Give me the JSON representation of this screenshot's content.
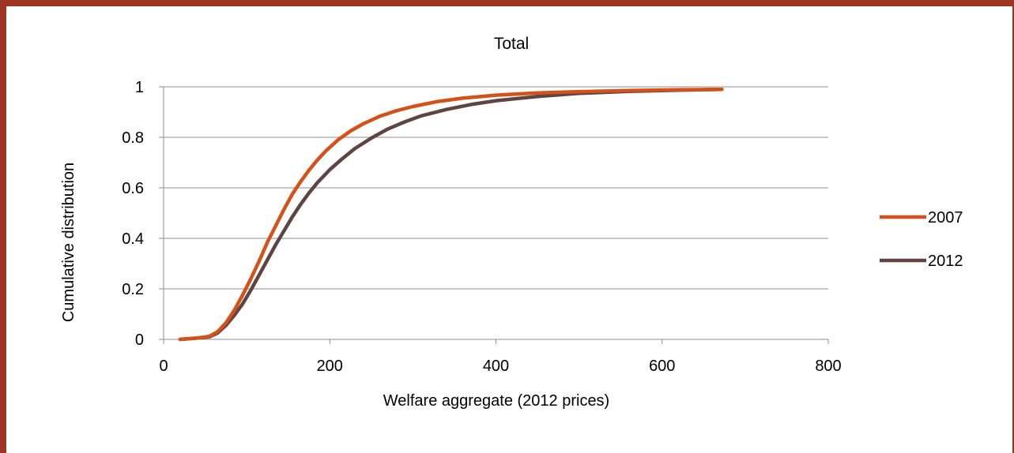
{
  "chart_data": {
    "type": "line",
    "title": "Total",
    "xlabel": "Welfare aggregate (2012 prices)",
    "ylabel": "Cumulative distribution",
    "xlim": [
      0,
      800
    ],
    "ylim": [
      0,
      1
    ],
    "x_ticks": [
      0,
      200,
      400,
      600,
      800
    ],
    "y_ticks": [
      0,
      0.2,
      0.4,
      0.6,
      0.8,
      1
    ],
    "x_tick_labels": [
      "0",
      "200",
      "400",
      "600",
      "800"
    ],
    "y_tick_labels": [
      "0",
      "0.2",
      "0.4",
      "0.6",
      "0.8",
      "1"
    ],
    "grid": "horizontal",
    "legend_position": "right",
    "series": [
      {
        "name": "2007",
        "color": "#d4521a",
        "x": [
          20,
          40,
          55,
          65,
          75,
          85,
          95,
          105,
          115,
          125,
          135,
          145,
          155,
          165,
          175,
          185,
          195,
          210,
          225,
          240,
          260,
          280,
          300,
          330,
          360,
          400,
          450,
          500,
          560,
          620,
          672
        ],
        "y": [
          0,
          0.005,
          0.012,
          0.03,
          0.065,
          0.115,
          0.175,
          0.24,
          0.31,
          0.385,
          0.45,
          0.515,
          0.575,
          0.625,
          0.67,
          0.71,
          0.745,
          0.79,
          0.825,
          0.853,
          0.883,
          0.905,
          0.922,
          0.942,
          0.955,
          0.967,
          0.976,
          0.981,
          0.985,
          0.988,
          0.99
        ]
      },
      {
        "name": "2012",
        "color": "#5e4443",
        "x": [
          20,
          40,
          55,
          65,
          75,
          85,
          95,
          105,
          115,
          125,
          135,
          145,
          155,
          165,
          175,
          185,
          200,
          215,
          230,
          250,
          270,
          290,
          310,
          340,
          370,
          400,
          450,
          500,
          560,
          620,
          672
        ],
        "y": [
          0,
          0.005,
          0.01,
          0.025,
          0.055,
          0.095,
          0.14,
          0.195,
          0.255,
          0.315,
          0.375,
          0.43,
          0.485,
          0.535,
          0.58,
          0.62,
          0.672,
          0.715,
          0.755,
          0.797,
          0.833,
          0.861,
          0.885,
          0.91,
          0.93,
          0.945,
          0.962,
          0.974,
          0.982,
          0.987,
          0.99
        ]
      }
    ]
  }
}
